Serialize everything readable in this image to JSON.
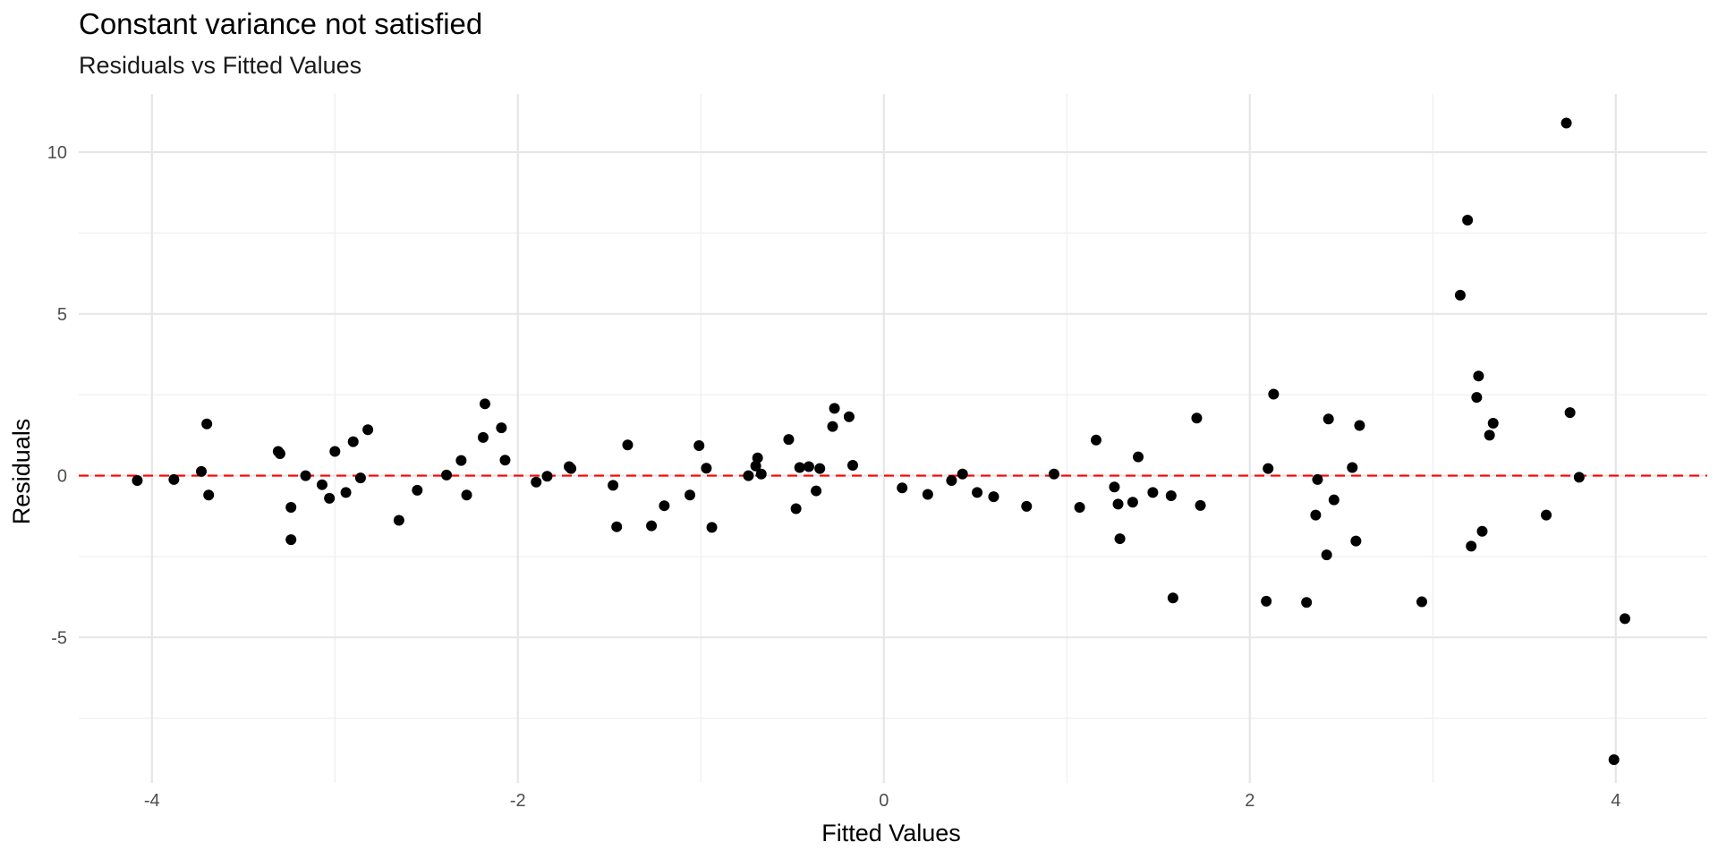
{
  "chart_data": {
    "type": "scatter",
    "title": "Constant variance not satisfied",
    "subtitle": "Residuals vs Fitted Values",
    "xlabel": "Fitted Values",
    "ylabel": "Residuals",
    "xlim": [
      -4.4,
      4.5
    ],
    "ylim": [
      -9.5,
      11.8
    ],
    "x_ticks": [
      -4,
      -2,
      0,
      2,
      4
    ],
    "x_tick_labels": [
      "-4",
      "-2",
      "0",
      "2",
      "4"
    ],
    "y_ticks": [
      -5,
      0,
      5,
      10
    ],
    "y_tick_labels": [
      "-5",
      "0",
      "5",
      "10"
    ],
    "grid": true,
    "reference_line": {
      "y": 0,
      "style": "dashed",
      "color": "#ff0000"
    },
    "point_color": "#000000",
    "points": [
      [
        -4.08,
        -0.15
      ],
      [
        -3.88,
        -0.12
      ],
      [
        -3.73,
        0.13
      ],
      [
        -3.7,
        1.6
      ],
      [
        -3.69,
        -0.6
      ],
      [
        -3.31,
        0.75
      ],
      [
        -3.3,
        0.68
      ],
      [
        -3.24,
        -0.98
      ],
      [
        -3.24,
        -1.98
      ],
      [
        -3.16,
        0.0
      ],
      [
        -3.07,
        -0.28
      ],
      [
        -3.03,
        -0.7
      ],
      [
        -3.0,
        0.75
      ],
      [
        -2.94,
        -0.52
      ],
      [
        -2.9,
        1.05
      ],
      [
        -2.86,
        -0.07
      ],
      [
        -2.82,
        1.42
      ],
      [
        -2.65,
        -1.38
      ],
      [
        -2.55,
        -0.45
      ],
      [
        -2.39,
        0.02
      ],
      [
        -2.31,
        0.47
      ],
      [
        -2.28,
        -0.6
      ],
      [
        -2.19,
        1.18
      ],
      [
        -2.18,
        2.22
      ],
      [
        -2.09,
        1.48
      ],
      [
        -2.07,
        0.48
      ],
      [
        -1.9,
        -0.2
      ],
      [
        -1.84,
        -0.02
      ],
      [
        -1.72,
        0.28
      ],
      [
        -1.71,
        0.22
      ],
      [
        -1.48,
        -0.3
      ],
      [
        -1.46,
        -1.58
      ],
      [
        -1.4,
        0.95
      ],
      [
        -1.27,
        -1.55
      ],
      [
        -1.2,
        -0.93
      ],
      [
        -1.06,
        -0.6
      ],
      [
        -1.01,
        0.93
      ],
      [
        -0.97,
        0.23
      ],
      [
        -0.94,
        -1.6
      ],
      [
        -0.74,
        0.0
      ],
      [
        -0.7,
        0.3
      ],
      [
        -0.69,
        0.55
      ],
      [
        -0.67,
        0.05
      ],
      [
        -0.52,
        1.12
      ],
      [
        -0.48,
        -1.02
      ],
      [
        -0.46,
        0.25
      ],
      [
        -0.41,
        0.28
      ],
      [
        -0.37,
        -0.47
      ],
      [
        -0.35,
        0.22
      ],
      [
        -0.28,
        1.52
      ],
      [
        -0.27,
        2.08
      ],
      [
        -0.19,
        1.82
      ],
      [
        -0.17,
        0.32
      ],
      [
        0.1,
        -0.38
      ],
      [
        0.24,
        -0.58
      ],
      [
        0.37,
        -0.15
      ],
      [
        0.43,
        0.05
      ],
      [
        0.51,
        -0.52
      ],
      [
        0.6,
        -0.65
      ],
      [
        0.78,
        -0.95
      ],
      [
        0.93,
        0.05
      ],
      [
        1.07,
        -0.98
      ],
      [
        1.16,
        1.1
      ],
      [
        1.26,
        -0.35
      ],
      [
        1.28,
        -0.88
      ],
      [
        1.29,
        -1.95
      ],
      [
        1.36,
        -0.82
      ],
      [
        1.39,
        0.58
      ],
      [
        1.47,
        -0.52
      ],
      [
        1.57,
        -0.62
      ],
      [
        1.58,
        -3.78
      ],
      [
        1.71,
        1.78
      ],
      [
        1.73,
        -0.92
      ],
      [
        2.09,
        -3.88
      ],
      [
        2.1,
        0.22
      ],
      [
        2.13,
        2.52
      ],
      [
        2.31,
        -3.92
      ],
      [
        2.36,
        -1.22
      ],
      [
        2.37,
        -0.12
      ],
      [
        2.42,
        -2.45
      ],
      [
        2.43,
        1.75
      ],
      [
        2.46,
        -0.75
      ],
      [
        2.56,
        0.25
      ],
      [
        2.58,
        -2.02
      ],
      [
        2.6,
        1.55
      ],
      [
        2.94,
        -3.9
      ],
      [
        3.15,
        5.58
      ],
      [
        3.19,
        7.9
      ],
      [
        3.21,
        -2.18
      ],
      [
        3.24,
        2.42
      ],
      [
        3.25,
        3.08
      ],
      [
        3.27,
        -1.72
      ],
      [
        3.31,
        1.25
      ],
      [
        3.33,
        1.62
      ],
      [
        3.62,
        -1.22
      ],
      [
        3.73,
        10.9
      ],
      [
        3.75,
        1.95
      ],
      [
        3.8,
        -0.05
      ],
      [
        3.99,
        -8.78
      ],
      [
        4.05,
        -4.42
      ]
    ]
  }
}
